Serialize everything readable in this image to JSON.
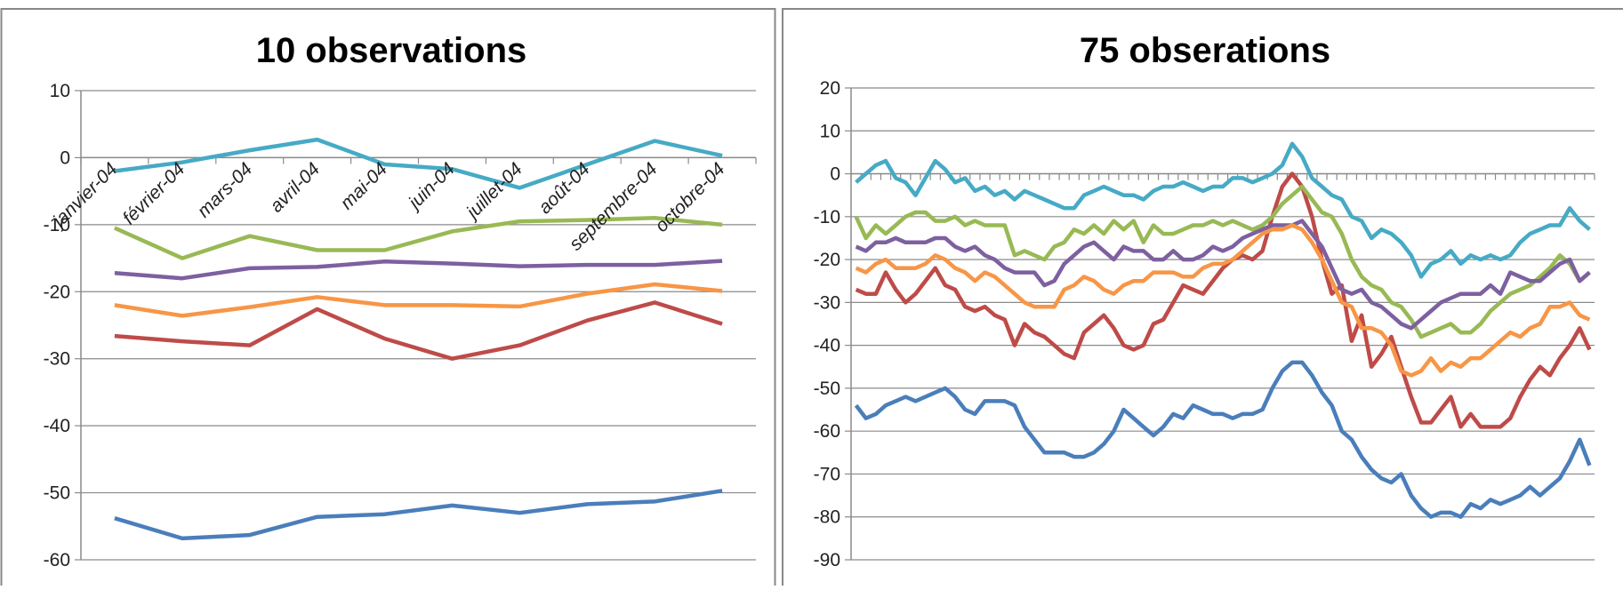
{
  "chart_data": [
    {
      "type": "line",
      "title": "10 observations",
      "categories": [
        "janvier-04",
        "février-04",
        "mars-04",
        "avril-04",
        "mai-04",
        "juin-04",
        "juillet-04",
        "août-04",
        "septembre-04",
        "octobre-04"
      ],
      "ylim": [
        -60,
        10
      ],
      "yticks": [
        -60,
        -50,
        -40,
        -30,
        -20,
        -10,
        0,
        10
      ],
      "grid": true,
      "series": [
        {
          "color": "#4a7ebb",
          "values": [
            -53.8,
            -56.8,
            -56.3,
            -53.6,
            -53.2,
            -51.9,
            -53,
            -51.7,
            -51.3,
            -49.7
          ]
        },
        {
          "color": "#be4b48",
          "values": [
            -26.6,
            -27.4,
            -28,
            -22.6,
            -27,
            -30,
            -28,
            -24.3,
            -21.6,
            -24.8
          ]
        },
        {
          "color": "#98b954",
          "values": [
            -10.5,
            -15,
            -11.7,
            -13.8,
            -13.8,
            -11,
            -9.5,
            -9.3,
            -9,
            -10
          ]
        },
        {
          "color": "#7d60a0",
          "values": [
            -17.2,
            -18,
            -16.5,
            -16.3,
            -15.5,
            -15.8,
            -16.2,
            -16,
            -16,
            -15.4
          ]
        },
        {
          "color": "#46aac5",
          "values": [
            -2,
            -0.7,
            1.1,
            2.7,
            -1,
            -1.7,
            -4.5,
            -1,
            2.5,
            0.3
          ]
        },
        {
          "color": "#f79646",
          "values": [
            -22,
            -23.6,
            -22.3,
            -20.8,
            -22,
            -22,
            -22.2,
            -20.3,
            -18.9,
            -19.9
          ]
        }
      ]
    },
    {
      "type": "line",
      "title": "75 obserations",
      "ylim": [
        -90,
        20
      ],
      "yticks": [
        -90,
        -80,
        -70,
        -60,
        -50,
        -40,
        -30,
        -20,
        -10,
        0,
        10,
        20
      ],
      "grid": true,
      "series": [
        {
          "color": "#4a7ebb",
          "values": [
            -54,
            -57,
            -56,
            -54,
            -53,
            -52,
            -53,
            -52,
            -51,
            -50,
            -52,
            -55,
            -56,
            -53,
            -53,
            -53,
            -54,
            -59,
            -62,
            -65,
            -65,
            -65,
            -66,
            -66,
            -65,
            -63,
            -60,
            -55,
            -57,
            -59,
            -61,
            -59,
            -56,
            -57,
            -54,
            -55,
            -56,
            -56,
            -57,
            -56,
            -56,
            -55,
            -50,
            -46,
            -44,
            -44,
            -47,
            -51,
            -54,
            -60,
            -62,
            -66,
            -69,
            -71,
            -72,
            -70,
            -75,
            -78,
            -80,
            -79,
            -79,
            -80,
            -77,
            -78,
            -76,
            -77,
            -76,
            -75,
            -73,
            -75,
            -73,
            -71,
            -67,
            -62,
            -68
          ]
        },
        {
          "color": "#be4b48",
          "values": [
            -27,
            -28,
            -28,
            -23,
            -27,
            -30,
            -28,
            -25,
            -22,
            -26,
            -27,
            -31,
            -32,
            -31,
            -33,
            -34,
            -40,
            -35,
            -37,
            -38,
            -40,
            -42,
            -43,
            -37,
            -35,
            -33,
            -36,
            -40,
            -41,
            -40,
            -35,
            -34,
            -30,
            -26,
            -27,
            -28,
            -25,
            -22,
            -20,
            -19,
            -20,
            -18,
            -10,
            -3,
            0,
            -3,
            -10,
            -20,
            -28,
            -26,
            -39,
            -33,
            -45,
            -42,
            -38,
            -45,
            -52,
            -58,
            -58,
            -55,
            -52,
            -59,
            -56,
            -59,
            -59,
            -59,
            -57,
            -52,
            -48,
            -45,
            -47,
            -43,
            -40,
            -36,
            -41
          ]
        },
        {
          "color": "#98b954",
          "values": [
            -10,
            -15,
            -12,
            -14,
            -12,
            -10,
            -9,
            -9,
            -11,
            -11,
            -10,
            -12,
            -11,
            -12,
            -12,
            -12,
            -19,
            -18,
            -19,
            -20,
            -17,
            -16,
            -13,
            -14,
            -12,
            -14,
            -11,
            -13,
            -11,
            -16,
            -12,
            -14,
            -14,
            -13,
            -12,
            -12,
            -11,
            -12,
            -11,
            -12,
            -13,
            -12,
            -10,
            -7,
            -5,
            -3,
            -6,
            -9,
            -10,
            -14,
            -20,
            -24,
            -26,
            -27,
            -30,
            -31,
            -34,
            -38,
            -37,
            -36,
            -35,
            -37,
            -37,
            -35,
            -32,
            -30,
            -28,
            -27,
            -26,
            -24,
            -22,
            -19,
            -21,
            -25,
            -23
          ]
        },
        {
          "color": "#7d60a0",
          "values": [
            -17,
            -18,
            -16,
            -16,
            -15,
            -16,
            -16,
            -16,
            -15,
            -15,
            -17,
            -18,
            -17,
            -19,
            -20,
            -22,
            -23,
            -23,
            -23,
            -26,
            -25,
            -21,
            -19,
            -17,
            -16,
            -18,
            -20,
            -17,
            -18,
            -18,
            -20,
            -20,
            -18,
            -20,
            -20,
            -19,
            -17,
            -18,
            -17,
            -15,
            -14,
            -13,
            -12,
            -12,
            -12,
            -11,
            -14,
            -17,
            -22,
            -27,
            -28,
            -27,
            -30,
            -31,
            -33,
            -35,
            -36,
            -34,
            -32,
            -30,
            -29,
            -28,
            -28,
            -28,
            -26,
            -28,
            -23,
            -24,
            -25,
            -25,
            -23,
            -21,
            -20,
            -25,
            -23
          ]
        },
        {
          "color": "#46aac5",
          "values": [
            -2,
            0,
            2,
            3,
            -1,
            -2,
            -5,
            -1,
            3,
            1,
            -2,
            -1,
            -4,
            -3,
            -5,
            -4,
            -6,
            -4,
            -5,
            -6,
            -7,
            -8,
            -8,
            -5,
            -4,
            -3,
            -4,
            -5,
            -5,
            -6,
            -4,
            -3,
            -3,
            -2,
            -3,
            -4,
            -3,
            -3,
            -1,
            -1,
            -2,
            -1,
            0,
            2,
            7,
            4,
            -1,
            -3,
            -5,
            -6,
            -10,
            -11,
            -15,
            -13,
            -14,
            -16,
            -19,
            -24,
            -21,
            -20,
            -18,
            -21,
            -19,
            -20,
            -19,
            -20,
            -19,
            -16,
            -14,
            -13,
            -12,
            -12,
            -8,
            -11,
            -13
          ]
        },
        {
          "color": "#f79646",
          "values": [
            -22,
            -23,
            -21,
            -20,
            -22,
            -22,
            -22,
            -21,
            -19,
            -20,
            -22,
            -23,
            -25,
            -23,
            -24,
            -26,
            -28,
            -30,
            -31,
            -31,
            -31,
            -27,
            -26,
            -24,
            -25,
            -27,
            -28,
            -26,
            -25,
            -25,
            -23,
            -23,
            -23,
            -24,
            -24,
            -22,
            -21,
            -21,
            -20,
            -18,
            -16,
            -14,
            -13,
            -13,
            -12,
            -13,
            -16,
            -20,
            -25,
            -30,
            -31,
            -36,
            -36,
            -37,
            -40,
            -46,
            -47,
            -46,
            -43,
            -46,
            -44,
            -45,
            -43,
            -43,
            -41,
            -39,
            -37,
            -38,
            -36,
            -35,
            -31,
            -31,
            -30,
            -33,
            -34
          ]
        }
      ]
    }
  ]
}
